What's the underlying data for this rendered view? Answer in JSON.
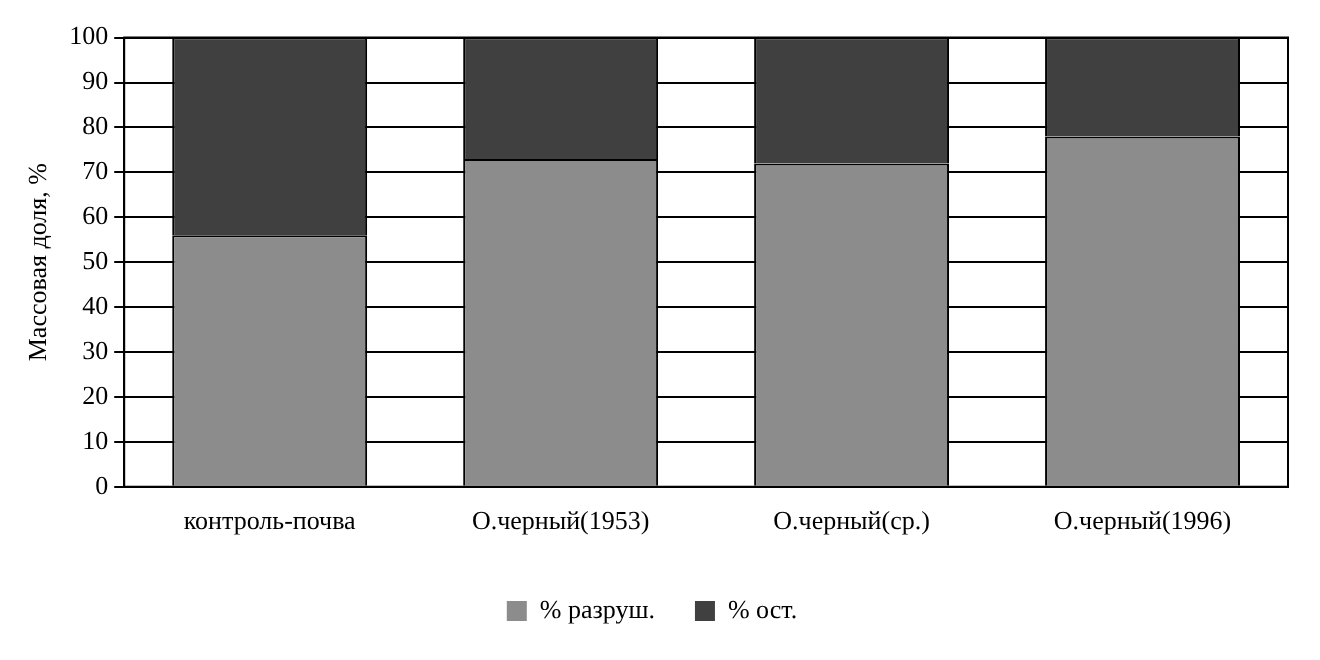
{
  "chart_data": {
    "type": "bar",
    "stacked": true,
    "ylabel": "Массовая доля, %",
    "categories": [
      "контроль-почва",
      "О.черный(1953)",
      "О.черный(ср.)",
      "О.черный(1996)"
    ],
    "series": [
      {
        "name": "% разруш.",
        "color": "#8c8c8c",
        "values": [
          56,
          73,
          72,
          78
        ]
      },
      {
        "name": "% ост.",
        "color": "#404040",
        "values": [
          44,
          27,
          28,
          22
        ]
      }
    ],
    "ylim": [
      0,
      100
    ],
    "yticks": [
      0,
      10,
      20,
      30,
      40,
      50,
      60,
      70,
      80,
      90,
      100
    ],
    "grid": "y",
    "legend": "bottom"
  }
}
